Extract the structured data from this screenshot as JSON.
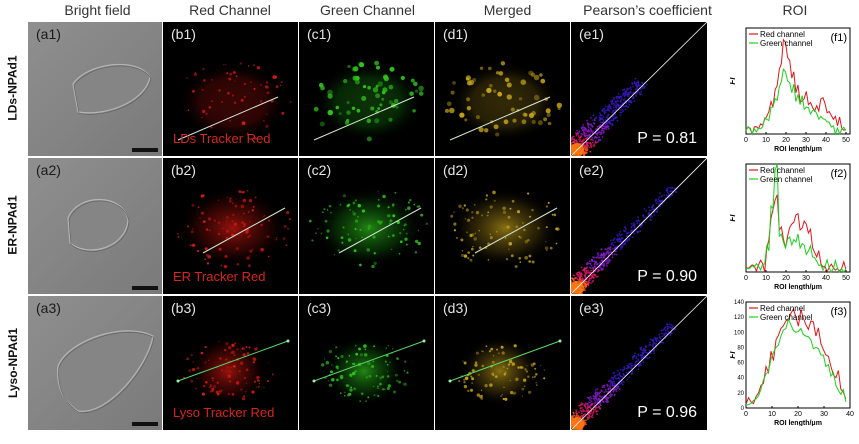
{
  "columns": [
    "Bright field",
    "Red Channel",
    "Green Channel",
    "Merged",
    "Pearson’s coefficient",
    "ROI"
  ],
  "rows": [
    {
      "label": "LDs-NPAd1",
      "panels": [
        "(a1)",
        "(b1)",
        "(c1)",
        "(d1)",
        "(e1)",
        "(f1)"
      ],
      "tracker": "LDs Tracker Red",
      "pearson": "P = 0.81"
    },
    {
      "label": "ER-NPAd1",
      "panels": [
        "(a2)",
        "(b2)",
        "(c2)",
        "(d2)",
        "(e2)",
        "(f2)"
      ],
      "tracker": "ER Tracker Red",
      "pearson": "P = 0.90"
    },
    {
      "label": "Lyso-NPAd1",
      "panels": [
        "(a3)",
        "(b3)",
        "(c3)",
        "(d3)",
        "(e3)",
        "(f3)"
      ],
      "tracker": "Lyso Tracker Red",
      "pearson": "P = 0.96"
    }
  ],
  "roi_charts": [
    {
      "type": "line",
      "legend": [
        "Red channel",
        "Green channel"
      ],
      "ylabel": "FI",
      "xlabel": "ROI length/μm",
      "xticks": [
        "0",
        "10",
        "20",
        "30",
        "40",
        "50"
      ],
      "yticks": [],
      "xlim": [
        0,
        52
      ],
      "series": [
        {
          "name": "Red channel",
          "values": [
            8,
            10,
            12,
            9,
            15,
            30,
            55,
            75,
            110,
            160,
            130,
            95,
            70,
            55,
            60,
            50,
            45,
            48,
            60,
            52,
            38,
            25,
            14,
            10,
            8
          ]
        },
        {
          "name": "Green channel",
          "values": [
            6,
            8,
            9,
            10,
            12,
            25,
            45,
            60,
            80,
            110,
            90,
            70,
            55,
            50,
            42,
            45,
            40,
            35,
            30,
            25,
            20,
            14,
            10,
            8,
            6
          ]
        }
      ]
    },
    {
      "type": "line",
      "legend": [
        "Red channel",
        "Green channel"
      ],
      "ylabel": "FI",
      "xlabel": "ROI length/μm",
      "xticks": [
        "0",
        "10",
        "20",
        "30",
        "40",
        "50"
      ],
      "yticks": [],
      "xlim": [
        0,
        52
      ],
      "series": [
        {
          "name": "Red channel",
          "values": [
            8,
            9,
            10,
            12,
            14,
            40,
            90,
            120,
            70,
            55,
            60,
            80,
            95,
            70,
            85,
            65,
            40,
            25,
            14,
            10,
            8,
            7,
            6,
            6,
            5
          ]
        },
        {
          "name": "Green channel",
          "values": [
            6,
            7,
            8,
            10,
            12,
            45,
            110,
            170,
            60,
            50,
            55,
            45,
            50,
            40,
            45,
            35,
            25,
            18,
            12,
            9,
            7,
            6,
            6,
            5,
            5
          ]
        }
      ]
    },
    {
      "type": "line",
      "legend": [
        "Red channel",
        "Green channel"
      ],
      "ylabel": "FI",
      "xlabel": "ROI length/μm",
      "xticks": [
        "0",
        "10",
        "20",
        "30",
        "40"
      ],
      "yticks": [
        "0",
        "20",
        "40",
        "60",
        "80",
        "100",
        "120",
        "140"
      ],
      "xlim": [
        0,
        40
      ],
      "ylim": [
        0,
        140
      ],
      "series": [
        {
          "name": "Red channel",
          "values": [
            5,
            8,
            15,
            30,
            55,
            75,
            90,
            105,
            115,
            125,
            120,
            130,
            110,
            115,
            95,
            85,
            70,
            55,
            40,
            25,
            12
          ]
        },
        {
          "name": "Green channel",
          "values": [
            4,
            6,
            12,
            25,
            45,
            65,
            80,
            95,
            105,
            110,
            100,
            105,
            95,
            90,
            80,
            70,
            55,
            42,
            30,
            18,
            8
          ]
        }
      ]
    }
  ]
}
